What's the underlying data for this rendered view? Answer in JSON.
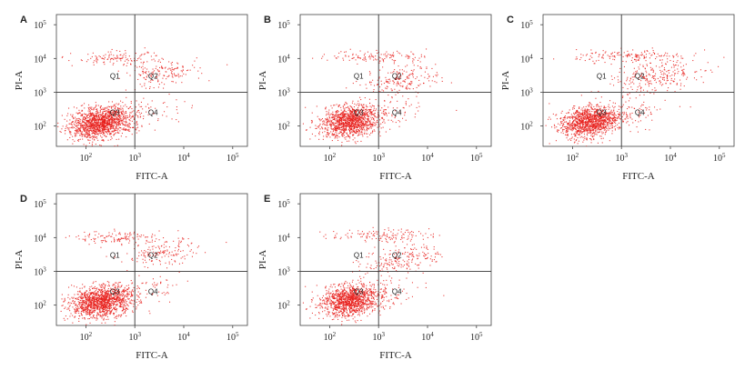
{
  "chart_data": [
    {
      "type": "scatter",
      "panel": "A",
      "xlabel": "FITC-A",
      "ylabel": "PI-A",
      "xscale": "log",
      "yscale": "log",
      "x_ticks": [
        {
          "base": "10",
          "exp": "2"
        },
        {
          "base": "10",
          "exp": "3"
        },
        {
          "base": "10",
          "exp": "4"
        },
        {
          "base": "10",
          "exp": "5"
        }
      ],
      "y_ticks": [
        {
          "base": "10",
          "exp": "2"
        },
        {
          "base": "10",
          "exp": "3"
        },
        {
          "base": "10",
          "exp": "4"
        },
        {
          "base": "10",
          "exp": "5"
        }
      ],
      "xlim": [
        25,
        200000
      ],
      "ylim": [
        25,
        200000
      ],
      "gate": {
        "x": 1000,
        "y": 1000
      },
      "quadrants": [
        "Q1",
        "Q2",
        "Q3",
        "Q4"
      ],
      "point_color": "#e8201c",
      "clusters": [
        {
          "x": 200,
          "y": 130,
          "sx": 0.32,
          "sy": 0.22,
          "rot": 0.35,
          "n": 1400
        },
        {
          "x": 450,
          "y": 10000,
          "sx": 0.45,
          "sy": 0.1,
          "rot": 0,
          "n": 130
        },
        {
          "x": 3500,
          "y": 3500,
          "sx": 0.38,
          "sy": 0.18,
          "rot": 0.2,
          "n": 160
        },
        {
          "x": 1500,
          "y": 250,
          "sx": 0.45,
          "sy": 0.25,
          "rot": 0.3,
          "n": 80
        }
      ]
    },
    {
      "type": "scatter",
      "panel": "B",
      "xlabel": "FITC-A",
      "ylabel": "PI-A",
      "xscale": "log",
      "yscale": "log",
      "x_ticks": [
        {
          "base": "10",
          "exp": "2"
        },
        {
          "base": "10",
          "exp": "3"
        },
        {
          "base": "10",
          "exp": "4"
        },
        {
          "base": "10",
          "exp": "5"
        }
      ],
      "y_ticks": [
        {
          "base": "10",
          "exp": "2"
        },
        {
          "base": "10",
          "exp": "3"
        },
        {
          "base": "10",
          "exp": "4"
        },
        {
          "base": "10",
          "exp": "5"
        }
      ],
      "xlim": [
        25,
        200000
      ],
      "ylim": [
        25,
        200000
      ],
      "gate": {
        "x": 1000,
        "y": 1000
      },
      "quadrants": [
        "Q1",
        "Q2",
        "Q3",
        "Q4"
      ],
      "point_color": "#e8201c",
      "clusters": [
        {
          "x": 250,
          "y": 140,
          "sx": 0.3,
          "sy": 0.22,
          "rot": 0.35,
          "n": 1200
        },
        {
          "x": 1000,
          "y": 12000,
          "sx": 0.5,
          "sy": 0.09,
          "rot": 0,
          "n": 120
        },
        {
          "x": 3000,
          "y": 2500,
          "sx": 0.4,
          "sy": 0.2,
          "rot": 0.25,
          "n": 190
        },
        {
          "x": 1500,
          "y": 250,
          "sx": 0.45,
          "sy": 0.25,
          "rot": 0.3,
          "n": 90
        }
      ]
    },
    {
      "type": "scatter",
      "panel": "C",
      "xlabel": "FITC-A",
      "ylabel": "PI-A",
      "xscale": "log",
      "yscale": "log",
      "x_ticks": [
        {
          "base": "10",
          "exp": "2"
        },
        {
          "base": "10",
          "exp": "3"
        },
        {
          "base": "10",
          "exp": "4"
        },
        {
          "base": "10",
          "exp": "5"
        }
      ],
      "y_ticks": [
        {
          "base": "10",
          "exp": "2"
        },
        {
          "base": "10",
          "exp": "3"
        },
        {
          "base": "10",
          "exp": "4"
        },
        {
          "base": "10",
          "exp": "5"
        }
      ],
      "xlim": [
        25,
        200000
      ],
      "ylim": [
        25,
        200000
      ],
      "gate": {
        "x": 1000,
        "y": 1000
      },
      "quadrants": [
        "Q1",
        "Q2",
        "Q3",
        "Q4"
      ],
      "point_color": "#e8201c",
      "clusters": [
        {
          "x": 220,
          "y": 140,
          "sx": 0.3,
          "sy": 0.22,
          "rot": 0.35,
          "n": 1250
        },
        {
          "x": 1500,
          "y": 12000,
          "sx": 0.55,
          "sy": 0.09,
          "rot": 0,
          "n": 150
        },
        {
          "x": 5000,
          "y": 3000,
          "sx": 0.5,
          "sy": 0.22,
          "rot": 0.3,
          "n": 260
        },
        {
          "x": 1500,
          "y": 250,
          "sx": 0.45,
          "sy": 0.25,
          "rot": 0.3,
          "n": 90
        }
      ]
    },
    {
      "type": "scatter",
      "panel": "D",
      "xlabel": "FITC-A",
      "ylabel": "PI-A",
      "xscale": "log",
      "yscale": "log",
      "x_ticks": [
        {
          "base": "10",
          "exp": "2"
        },
        {
          "base": "10",
          "exp": "3"
        },
        {
          "base": "10",
          "exp": "4"
        },
        {
          "base": "10",
          "exp": "5"
        }
      ],
      "y_ticks": [
        {
          "base": "10",
          "exp": "2"
        },
        {
          "base": "10",
          "exp": "3"
        },
        {
          "base": "10",
          "exp": "4"
        },
        {
          "base": "10",
          "exp": "5"
        }
      ],
      "xlim": [
        25,
        200000
      ],
      "ylim": [
        25,
        200000
      ],
      "gate": {
        "x": 1000,
        "y": 1000
      },
      "quadrants": [
        "Q1",
        "Q2",
        "Q3",
        "Q4"
      ],
      "point_color": "#e8201c",
      "clusters": [
        {
          "x": 200,
          "y": 130,
          "sx": 0.32,
          "sy": 0.22,
          "rot": 0.35,
          "n": 1350
        },
        {
          "x": 450,
          "y": 10000,
          "sx": 0.45,
          "sy": 0.1,
          "rot": 0,
          "n": 130
        },
        {
          "x": 3500,
          "y": 3500,
          "sx": 0.38,
          "sy": 0.18,
          "rot": 0.2,
          "n": 160
        },
        {
          "x": 1500,
          "y": 250,
          "sx": 0.45,
          "sy": 0.25,
          "rot": 0.3,
          "n": 80
        }
      ]
    },
    {
      "type": "scatter",
      "panel": "E",
      "xlabel": "FITC-A",
      "ylabel": "PI-A",
      "xscale": "log",
      "yscale": "log",
      "x_ticks": [
        {
          "base": "10",
          "exp": "2"
        },
        {
          "base": "10",
          "exp": "3"
        },
        {
          "base": "10",
          "exp": "4"
        },
        {
          "base": "10",
          "exp": "5"
        }
      ],
      "y_ticks": [
        {
          "base": "10",
          "exp": "2"
        },
        {
          "base": "10",
          "exp": "3"
        },
        {
          "base": "10",
          "exp": "4"
        },
        {
          "base": "10",
          "exp": "5"
        }
      ],
      "xlim": [
        25,
        200000
      ],
      "ylim": [
        25,
        200000
      ],
      "gate": {
        "x": 1000,
        "y": 1000
      },
      "quadrants": [
        "Q1",
        "Q2",
        "Q3",
        "Q4"
      ],
      "point_color": "#e8201c",
      "clusters": [
        {
          "x": 250,
          "y": 140,
          "sx": 0.3,
          "sy": 0.22,
          "rot": 0.35,
          "n": 1200
        },
        {
          "x": 1000,
          "y": 12000,
          "sx": 0.5,
          "sy": 0.09,
          "rot": 0,
          "n": 130
        },
        {
          "x": 3000,
          "y": 2500,
          "sx": 0.4,
          "sy": 0.2,
          "rot": 0.25,
          "n": 200
        },
        {
          "x": 1500,
          "y": 250,
          "sx": 0.45,
          "sy": 0.25,
          "rot": 0.3,
          "n": 90
        }
      ]
    }
  ]
}
